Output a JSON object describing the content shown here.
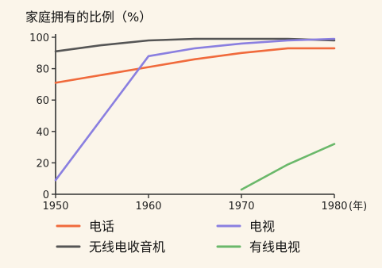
{
  "chart_data": {
    "type": "line",
    "title": "",
    "ylabel": "家庭拥有的比例（%）",
    "xlabel": "",
    "x_unit": "(年)",
    "xlim": [
      1950,
      1980
    ],
    "ylim": [
      0,
      100
    ],
    "x_ticks": [
      1950,
      1960,
      1970,
      1980
    ],
    "y_ticks": [
      0,
      20,
      40,
      60,
      80,
      100
    ],
    "grid": false,
    "legend_position": "bottom",
    "series": [
      {
        "name": "电话",
        "color": "#f06a3c",
        "points": [
          [
            1950,
            71
          ],
          [
            1960,
            81
          ],
          [
            1965,
            86
          ],
          [
            1970,
            90
          ],
          [
            1975,
            93
          ],
          [
            1980,
            93
          ]
        ]
      },
      {
        "name": "电视",
        "color": "#8a7fe0",
        "points": [
          [
            1950,
            9
          ],
          [
            1960,
            88
          ],
          [
            1965,
            93
          ],
          [
            1970,
            96
          ],
          [
            1975,
            98
          ],
          [
            1980,
            99
          ]
        ]
      },
      {
        "name": "无线电收音机",
        "color": "#555555",
        "points": [
          [
            1950,
            91
          ],
          [
            1955,
            95
          ],
          [
            1960,
            98
          ],
          [
            1965,
            99
          ],
          [
            1970,
            99
          ],
          [
            1975,
            99
          ],
          [
            1980,
            98
          ]
        ]
      },
      {
        "name": "有线电视",
        "color": "#6ab86a",
        "points": [
          [
            1970,
            3
          ],
          [
            1975,
            19
          ],
          [
            1980,
            32
          ]
        ]
      }
    ]
  }
}
